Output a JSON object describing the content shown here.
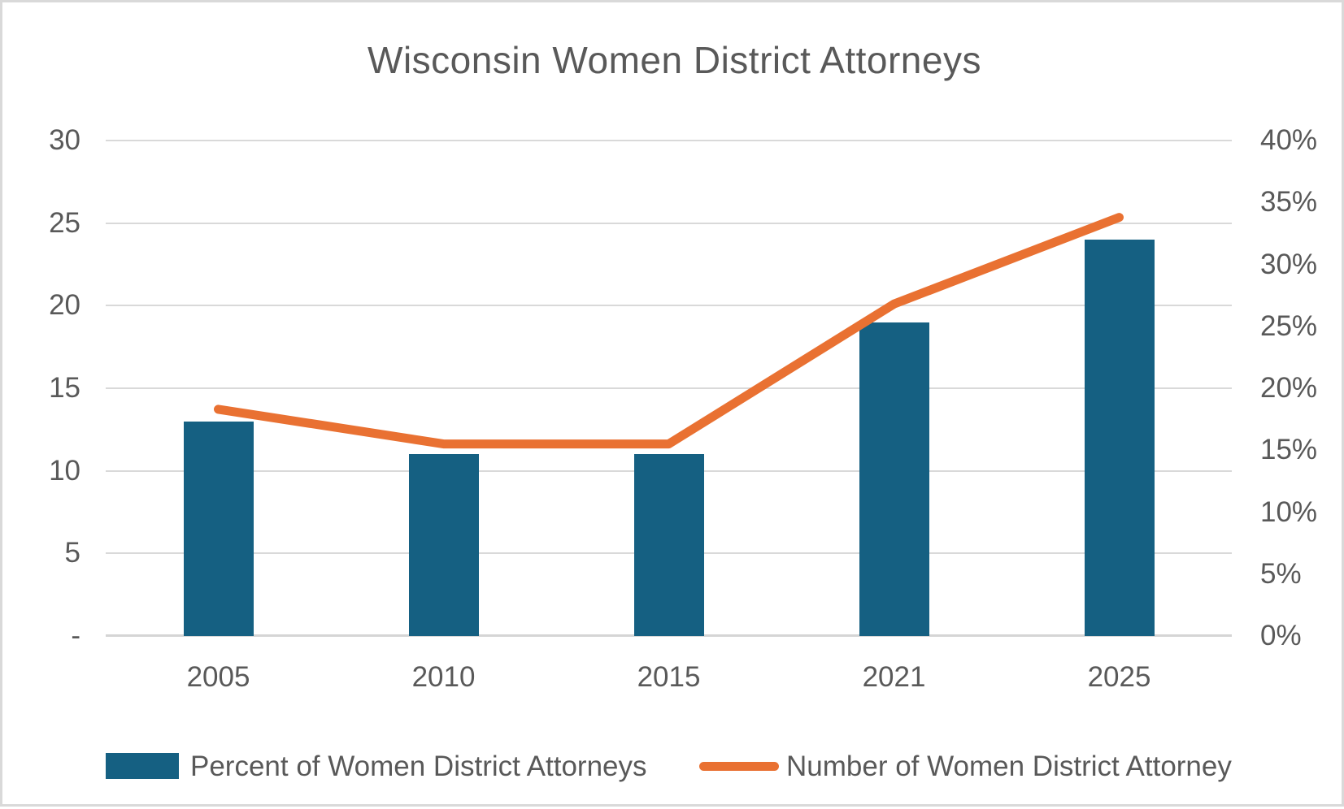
{
  "title": "Wisconsin Women District Attorneys",
  "colors": {
    "bar": "#156082",
    "line": "#E97132",
    "grid": "#D9D9D9",
    "baseline": "#D5D5D5",
    "axis_text": "#595959",
    "title_text": "#595959",
    "frame_border": "#D9D9D9",
    "background": "#FFFFFF"
  },
  "left_axis": {
    "tick_labels": [
      "30",
      "25",
      "20",
      "15",
      "10",
      "5",
      "-"
    ],
    "min": 0,
    "max": 30
  },
  "right_axis": {
    "tick_labels": [
      "40%",
      "35%",
      "30%",
      "25%",
      "20%",
      "15%",
      "10%",
      "5%",
      "0%"
    ],
    "min": 0,
    "max": 40
  },
  "legend": {
    "items": [
      {
        "label": "Percent of Women District Attorneys",
        "swatch": "bar-swatch"
      },
      {
        "label": "Number of Women District Attorney",
        "swatch": "line-swatch"
      }
    ]
  },
  "chart_data": {
    "type": "combo",
    "categories": [
      "2005",
      "2010",
      "2015",
      "2021",
      "2025"
    ],
    "series": [
      {
        "name": "Percent of Women District Attorneys",
        "type": "bar",
        "axis": "left",
        "values": [
          13,
          11,
          11,
          19,
          24
        ]
      },
      {
        "name": "Number of Women District Attorney",
        "type": "line",
        "axis": "right",
        "values": [
          18.3,
          15.5,
          15.5,
          26.8,
          33.8
        ]
      }
    ],
    "title": "Wisconsin Women District Attorneys",
    "xlabel": "",
    "ylabel_left": "",
    "ylabel_right": "",
    "left_ylim": [
      0,
      30
    ],
    "right_ylim": [
      0,
      40
    ],
    "grid": true,
    "legend_position": "bottom"
  }
}
